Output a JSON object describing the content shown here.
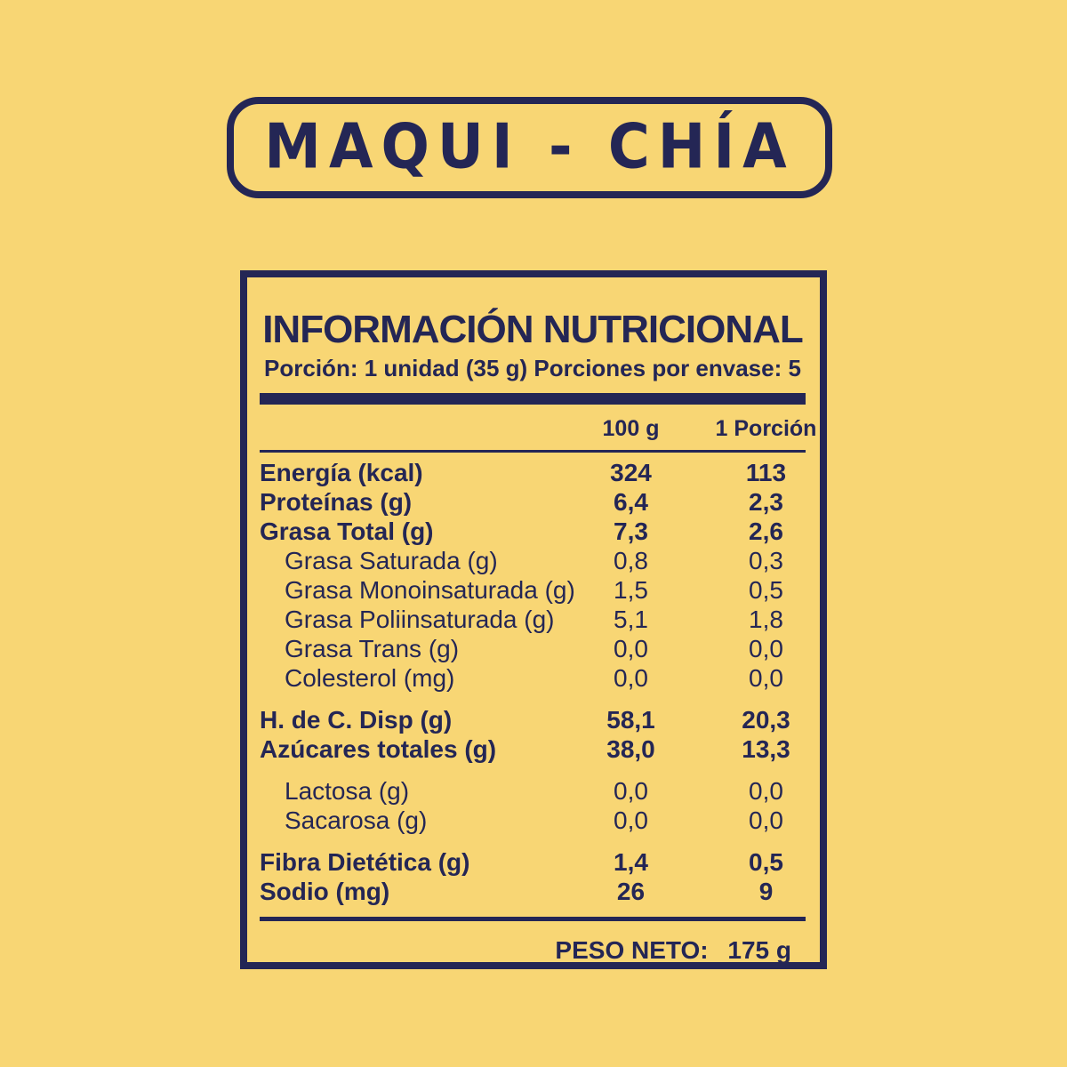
{
  "page": {
    "background": "#F8D674",
    "ink": "#242655"
  },
  "title_badge": {
    "text": "MAQUI - CHÍA"
  },
  "nutrition": {
    "title": "INFORMACIÓN NUTRICIONAL",
    "serving_line": "Porción: 1 unidad (35 g) Porciones por envase: 5",
    "columns": [
      "100 g",
      "1 Porción"
    ],
    "rows": [
      {
        "label": "Energía (kcal)",
        "per100": "324",
        "perServing": "113",
        "bold": true,
        "indent": false,
        "gap_before": false
      },
      {
        "label": "Proteínas (g)",
        "per100": "6,4",
        "perServing": "2,3",
        "bold": true,
        "indent": false,
        "gap_before": false
      },
      {
        "label": "Grasa Total (g)",
        "per100": "7,3",
        "perServing": "2,6",
        "bold": true,
        "indent": false,
        "gap_before": false
      },
      {
        "label": "Grasa Saturada (g)",
        "per100": "0,8",
        "perServing": "0,3",
        "bold": false,
        "indent": true,
        "gap_before": false
      },
      {
        "label": "Grasa Monoinsaturada (g)",
        "per100": "1,5",
        "perServing": "0,5",
        "bold": false,
        "indent": true,
        "gap_before": false
      },
      {
        "label": "Grasa Poliinsaturada (g)",
        "per100": "5,1",
        "perServing": "1,8",
        "bold": false,
        "indent": true,
        "gap_before": false
      },
      {
        "label": "Grasa Trans (g)",
        "per100": "0,0",
        "perServing": "0,0",
        "bold": false,
        "indent": true,
        "gap_before": false
      },
      {
        "label": "Colesterol (mg)",
        "per100": "0,0",
        "perServing": "0,0",
        "bold": false,
        "indent": true,
        "gap_before": false
      },
      {
        "label": "H. de C. Disp (g)",
        "per100": "58,1",
        "perServing": "20,3",
        "bold": true,
        "indent": false,
        "gap_before": true
      },
      {
        "label": "Azúcares totales (g)",
        "per100": "38,0",
        "perServing": "13,3",
        "bold": true,
        "indent": false,
        "gap_before": false
      },
      {
        "label": "Lactosa (g)",
        "per100": "0,0",
        "perServing": "0,0",
        "bold": false,
        "indent": true,
        "gap_before": true
      },
      {
        "label": "Sacarosa (g)",
        "per100": "0,0",
        "perServing": "0,0",
        "bold": false,
        "indent": true,
        "gap_before": false
      },
      {
        "label": "Fibra Dietética (g)",
        "per100": "1,4",
        "perServing": "0,5",
        "bold": true,
        "indent": false,
        "gap_before": true
      },
      {
        "label": "Sodio (mg)",
        "per100": "26",
        "perServing": "9",
        "bold": true,
        "indent": false,
        "gap_before": false
      }
    ],
    "footer": {
      "label": "PESO NETO:",
      "value": "175 g"
    }
  }
}
